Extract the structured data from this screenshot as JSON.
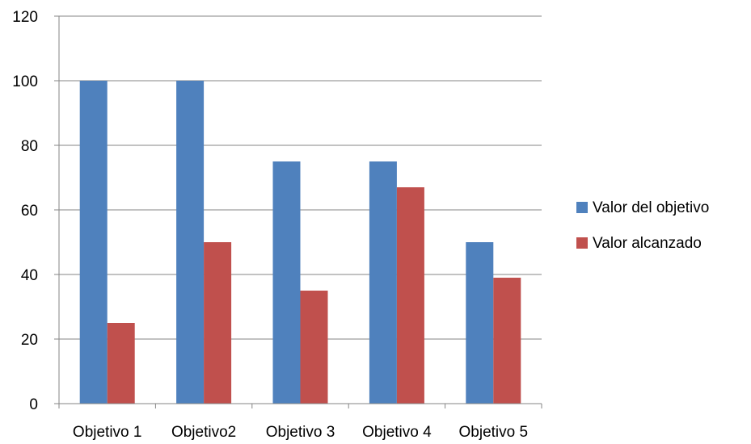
{
  "chart_data": {
    "type": "bar",
    "title": "",
    "xlabel": "",
    "ylabel": "",
    "categories": [
      "Objetivo 1",
      "Objetivo2",
      "Objetivo 3",
      "Objetivo 4",
      "Objetivo 5"
    ],
    "series": [
      {
        "name": "Valor del objetivo",
        "color": "#4F81BD",
        "values": [
          100,
          100,
          75,
          75,
          50
        ]
      },
      {
        "name": "Valor alcanzado",
        "color": "#C0504D",
        "values": [
          25,
          50,
          35,
          67,
          39
        ]
      }
    ],
    "ylim": [
      0,
      120
    ],
    "yticks": [
      "0",
      "20",
      "40",
      "60",
      "80",
      "100",
      "120"
    ],
    "grid": true,
    "legend_position": "right"
  }
}
